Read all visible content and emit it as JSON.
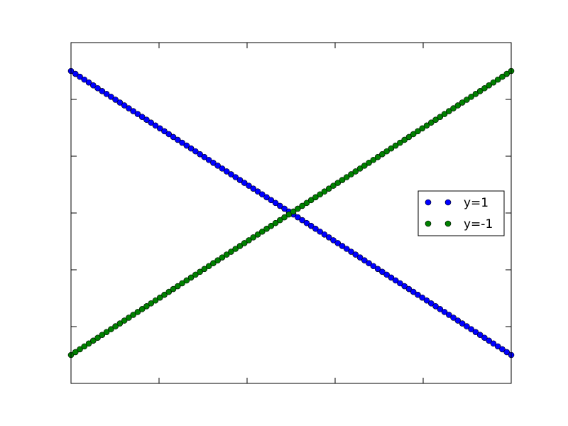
{
  "chart_data": {
    "type": "scatter",
    "xlim": [
      0,
      1
    ],
    "ylim": [
      -1.2,
      1.2
    ],
    "grid": false,
    "legend_position": "center-right",
    "marker": "circle",
    "point_count": 100,
    "x_tick_count": 6,
    "y_tick_count": 7,
    "series": [
      {
        "name": "y=1",
        "color": "#0000ff",
        "x_range": [
          0,
          1
        ],
        "y_range": [
          1,
          -1
        ]
      },
      {
        "name": "y=-1",
        "color": "#008000",
        "x_range": [
          0,
          1
        ],
        "y_range": [
          -1,
          1
        ]
      }
    ]
  }
}
